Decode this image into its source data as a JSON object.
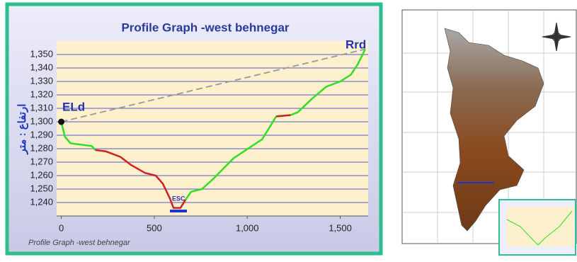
{
  "chart_data": {
    "type": "line",
    "title": "Profile Graph -west behnegar",
    "y_label": "ارتفاع : متر",
    "footnote": "Profile Graph -west behnegar",
    "annotations": [
      "ELd",
      "Rrd",
      "ESC"
    ],
    "x": [
      0,
      19,
      50,
      164,
      183,
      240,
      317,
      374,
      450,
      508,
      546,
      584,
      603,
      641,
      668,
      698,
      756,
      813,
      927,
      1080,
      1156,
      1233,
      1271,
      1347,
      1424,
      1500,
      1557,
      1595,
      1634
    ],
    "series": [
      {
        "color": "#33dd22",
        "values": [
          1300,
          1289,
          1284,
          1282,
          1279,
          null,
          null,
          null,
          null,
          null,
          null,
          null,
          null,
          null,
          1242,
          1248,
          1250,
          1257,
          1273,
          1287,
          1304,
          1305,
          1307,
          1317,
          1326,
          1330,
          1335,
          1343,
          1354
        ]
      },
      {
        "color": "#cc2222",
        "values": [
          null,
          null,
          null,
          null,
          1279,
          1278,
          1274,
          1268,
          1262,
          1260,
          1254,
          1243,
          1236,
          1236,
          1242,
          null,
          null,
          null,
          null,
          null,
          1304,
          1305,
          null,
          null,
          null,
          null,
          null,
          null,
          null
        ]
      }
    ],
    "xlim": [
      -25,
      1650
    ],
    "ylim": [
      1230,
      1360
    ],
    "xticks": [
      0,
      500,
      {
        "value": 1000,
        "label": "1,000"
      },
      {
        "value": 1500,
        "label": "1,500"
      }
    ],
    "yticks": [
      {
        "value": 1240,
        "label": "1,240"
      },
      {
        "value": 1250,
        "label": "1,250"
      },
      {
        "value": 1260,
        "label": "1,260"
      },
      {
        "value": 1270,
        "label": "1,270"
      },
      {
        "value": 1280,
        "label": "1,280"
      },
      {
        "value": 1290,
        "label": "1,290"
      },
      {
        "value": 1300,
        "label": "1,300"
      },
      {
        "value": 1310,
        "label": "1,310"
      },
      {
        "value": 1320,
        "label": "1,320"
      },
      {
        "value": 1330,
        "label": "1,330"
      },
      {
        "value": 1340,
        "label": "1,340"
      },
      {
        "value": 1350,
        "label": "1,350"
      }
    ],
    "grid": true
  }
}
